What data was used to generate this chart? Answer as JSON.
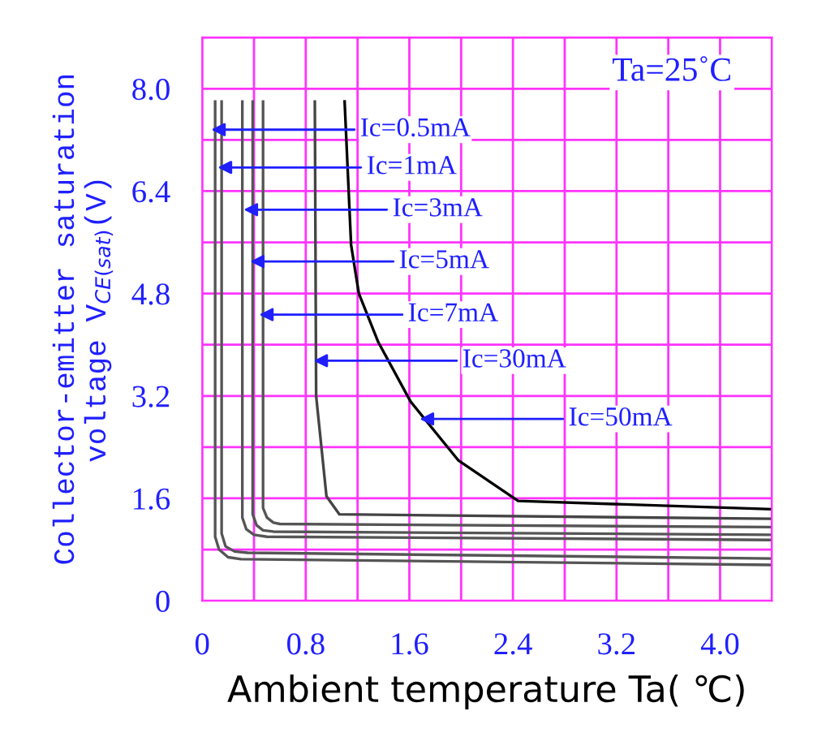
{
  "chart_data": {
    "type": "line",
    "xlabel": "Ambient temperature Ta( ℃)",
    "ylabel": "Collector-emitter saturation\nvoltage V$_{CE(sat)}$(V)",
    "xlim": [
      0,
      4.4
    ],
    "ylim": [
      0,
      8.8
    ],
    "xticks": [
      0,
      0.8,
      1.6,
      2.4,
      3.2,
      {
        "value": 4.0,
        "label": "4.0"
      }
    ],
    "yticks": [
      0,
      1.6,
      3.2,
      4.8,
      6.4,
      {
        "value": 8.0,
        "label": "8.0"
      }
    ],
    "grid": true,
    "marker": "none",
    "line_style": "solid",
    "series": [
      {
        "color": "#555555",
        "x": [
          0.1,
          0.1,
          0.13,
          0.2,
          0.3,
          4.4
        ],
        "values": [
          7.8,
          1.0,
          0.8,
          0.68,
          0.65,
          0.56
        ]
      },
      {
        "color": "#555555",
        "x": [
          0.15,
          0.15,
          0.18,
          0.25,
          0.35,
          4.4
        ],
        "values": [
          7.8,
          1.05,
          0.85,
          0.77,
          0.75,
          0.66
        ]
      },
      {
        "color": "#555555",
        "x": [
          0.31,
          0.31,
          0.34,
          0.4,
          0.5,
          4.4
        ],
        "values": [
          7.8,
          1.3,
          1.12,
          1.03,
          1.0,
          0.95
        ]
      },
      {
        "color": "#555555",
        "x": [
          0.39,
          0.39,
          0.42,
          0.47,
          0.55,
          4.4
        ],
        "values": [
          7.8,
          1.35,
          1.18,
          1.1,
          1.08,
          1.03
        ]
      },
      {
        "color": "#555555",
        "x": [
          0.47,
          0.47,
          0.5,
          0.55,
          0.6,
          4.4
        ],
        "values": [
          7.8,
          1.45,
          1.3,
          1.22,
          1.2,
          1.15
        ]
      },
      {
        "color": "#444444",
        "x": [
          0.87,
          0.88,
          0.96,
          1.06,
          4.4
        ],
        "values": [
          7.8,
          3.2,
          1.63,
          1.35,
          1.28
        ]
      },
      {
        "color": "#000000",
        "x": [
          1.1,
          1.15,
          1.21,
          1.36,
          1.61,
          1.98,
          2.44,
          4.4
        ],
        "values": [
          7.8,
          5.56,
          4.8,
          4.04,
          3.11,
          2.19,
          1.56,
          1.43
        ]
      }
    ],
    "annotations": [
      {
        "text": "Ic=0.5mA",
        "x": 0.07,
        "y": 7.36
      },
      {
        "text": "Ic=1mA",
        "x": 0.12,
        "y": 6.77
      },
      {
        "text": "Ic=3mA",
        "x": 0.32,
        "y": 6.11
      },
      {
        "text": "Ic=5mA",
        "x": 0.37,
        "y": 5.3
      },
      {
        "text": "Ic=7mA",
        "x": 0.44,
        "y": 4.47
      },
      {
        "text": "Ic=30mA",
        "x": 0.86,
        "y": 3.75
      },
      {
        "text": "Ic=50mA",
        "x": 1.68,
        "y": 2.84
      },
      "Ta=25˚C"
    ]
  }
}
